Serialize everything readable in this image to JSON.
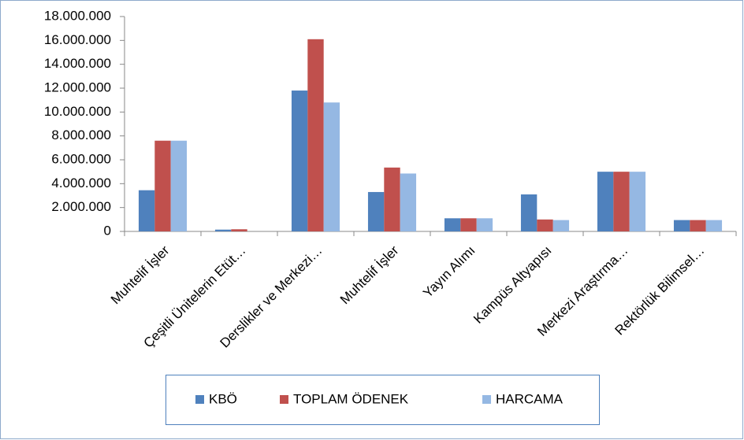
{
  "chart_data": {
    "type": "bar",
    "categories": [
      "Muhtelif İşler",
      "Çeşitli Ünitelerin Etüt…",
      "Derslikler ve Merkezi…",
      "Muhtelif İşler",
      "Yayın Alımı",
      "Kampüs Altyapısı",
      "Merkezi Araştırma…",
      "Rektörlük Bilimsel…"
    ],
    "series": [
      {
        "name": "KBÖ",
        "color": "#4f81bd",
        "values": [
          3450000,
          150000,
          11800000,
          3300000,
          1100000,
          3100000,
          5000000,
          950000
        ]
      },
      {
        "name": "TOPLAM ÖDENEK",
        "color": "#c0504d",
        "values": [
          7600000,
          180000,
          16100000,
          5350000,
          1100000,
          1000000,
          5000000,
          950000
        ]
      },
      {
        "name": "HARCAMA",
        "color": "#95b8e3",
        "values": [
          7600000,
          0,
          10800000,
          4850000,
          1100000,
          950000,
          5000000,
          950000
        ]
      }
    ],
    "ylim": [
      0,
      18000000
    ],
    "yticks": [
      0,
      {
        "value": 2000000,
        "label": "2.000.000"
      },
      {
        "value": 4000000,
        "label": "4.000.000"
      },
      {
        "value": 6000000,
        "label": "6.000.000"
      },
      {
        "value": 8000000,
        "label": "8.000.000"
      },
      {
        "value": 10000000,
        "label": "10.000.000"
      },
      {
        "value": 12000000,
        "label": "12.000.000"
      },
      {
        "value": 14000000,
        "label": "14.000.000"
      },
      {
        "value": 16000000,
        "label": "16.000.000"
      },
      {
        "value": 18000000,
        "label": "18.000.000"
      }
    ],
    "legend": "bottom",
    "grid": false
  }
}
